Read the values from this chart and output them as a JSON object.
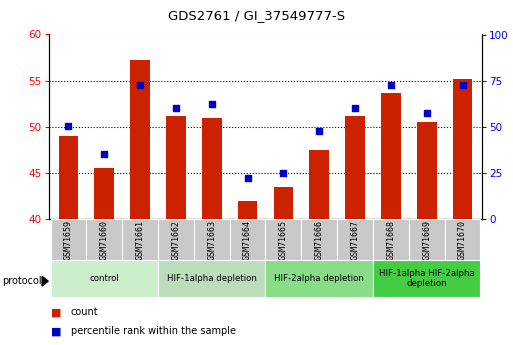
{
  "title": "GDS2761 / GI_37549777-S",
  "samples": [
    "GSM71659",
    "GSM71660",
    "GSM71661",
    "GSM71662",
    "GSM71663",
    "GSM71664",
    "GSM71665",
    "GSM71666",
    "GSM71667",
    "GSM71668",
    "GSM71669",
    "GSM71670"
  ],
  "counts": [
    49.0,
    45.5,
    57.2,
    51.2,
    51.0,
    42.0,
    43.5,
    47.5,
    51.2,
    53.7,
    50.5,
    55.2
  ],
  "percentile_ranks": [
    50.5,
    35.0,
    72.5,
    60.0,
    62.5,
    22.5,
    25.0,
    47.5,
    60.0,
    72.5,
    57.5,
    72.5
  ],
  "ylim_left": [
    40,
    60
  ],
  "ylim_right": [
    0,
    100
  ],
  "yticks_left": [
    40,
    45,
    50,
    55,
    60
  ],
  "yticks_right": [
    0,
    25,
    50,
    75,
    100
  ],
  "bar_color": "#cc2200",
  "dot_color": "#0000cc",
  "bar_width": 0.55,
  "protocol_groups": [
    {
      "label": "control",
      "start": 0,
      "end": 2,
      "color": "#cceecc"
    },
    {
      "label": "HIF-1alpha depletion",
      "start": 3,
      "end": 5,
      "color": "#bbddbb"
    },
    {
      "label": "HIF-2alpha depletion",
      "start": 6,
      "end": 8,
      "color": "#88dd88"
    },
    {
      "label": "HIF-1alpha HIF-2alpha\ndepletion",
      "start": 9,
      "end": 11,
      "color": "#44cc44"
    }
  ],
  "legend_items": [
    {
      "label": "count",
      "color": "#cc2200"
    },
    {
      "label": "percentile rank within the sample",
      "color": "#0000cc"
    }
  ]
}
